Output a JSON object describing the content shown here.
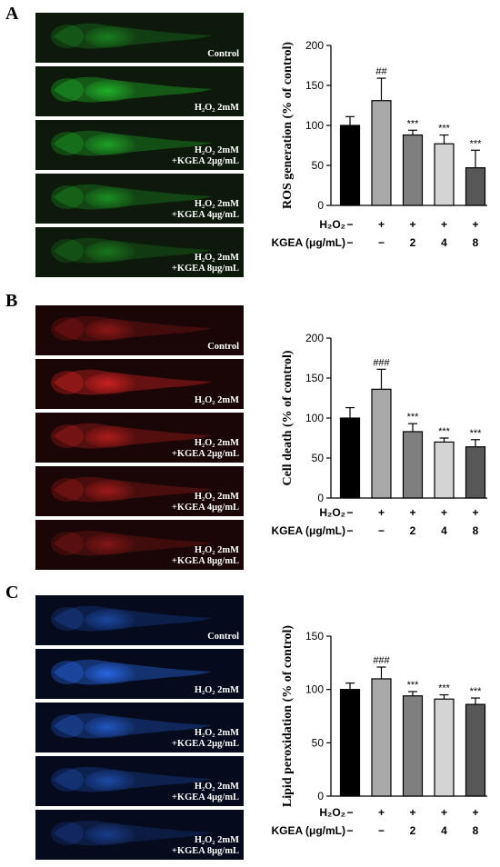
{
  "panels": [
    {
      "letter": "A",
      "color": "#22c02c",
      "bg": "#0d1a0b",
      "images": [
        {
          "caption1": "Control",
          "caption2": "",
          "intensity": 0.55
        },
        {
          "caption1": "H₂O₂ 2mM",
          "caption2": "",
          "intensity": 0.95
        },
        {
          "caption1": "H₂O₂ 2mM",
          "caption2": "+KGEA 2μg/mL",
          "intensity": 0.8
        },
        {
          "caption1": "H₂O₂ 2mM",
          "caption2": "+KGEA 4μg/mL",
          "intensity": 0.65
        },
        {
          "caption1": "H₂O₂ 2mM",
          "caption2": "+KGEA 8μg/mL",
          "intensity": 0.5
        }
      ]
    },
    {
      "letter": "B",
      "color": "#d62222",
      "bg": "#1a0606",
      "images": [
        {
          "caption1": "Control",
          "caption2": "",
          "intensity": 0.55
        },
        {
          "caption1": "H₂O₂ 2mM",
          "caption2": "",
          "intensity": 1.0
        },
        {
          "caption1": "H₂O₂ 2mM",
          "caption2": "+KGEA 2μg/mL",
          "intensity": 0.75
        },
        {
          "caption1": "H₂O₂ 2mM",
          "caption2": "+KGEA 4μg/mL",
          "intensity": 0.65
        },
        {
          "caption1": "H₂O₂ 2mM",
          "caption2": "+KGEA 8μg/mL",
          "intensity": 0.5
        }
      ]
    },
    {
      "letter": "C",
      "color": "#2a6cf0",
      "bg": "#050a1c",
      "images": [
        {
          "caption1": "Control",
          "caption2": "",
          "intensity": 0.55
        },
        {
          "caption1": "H₂O₂ 2mM",
          "caption2": "",
          "intensity": 1.0
        },
        {
          "caption1": "H₂O₂ 2mM",
          "caption2": "+KGEA 2μg/mL",
          "intensity": 0.75
        },
        {
          "caption1": "H₂O₂ 2mM",
          "caption2": "+KGEA 4μg/mL",
          "intensity": 0.6
        },
        {
          "caption1": "H₂O₂ 2mM",
          "caption2": "+KGEA 8μg/mL",
          "intensity": 0.45
        }
      ]
    }
  ],
  "treatments": {
    "h2o2_label": "H₂O₂",
    "kgea_label": "KGEA (μg/mL)",
    "h2o2": [
      "−",
      "+",
      "+",
      "+",
      "+"
    ],
    "kgea": [
      "−",
      "−",
      "2",
      "4",
      "8"
    ]
  },
  "bar_colors": [
    "#000000",
    "#a8a8a8",
    "#7f7f7f",
    "#d4d4d4",
    "#575757"
  ],
  "chart_data": [
    {
      "type": "bar",
      "panel": "A",
      "ylabel": "ROS generation (% of control)",
      "ylim": [
        0,
        200
      ],
      "yticks": [
        0,
        50,
        100,
        150,
        200
      ],
      "categories": [
        "Control",
        "H₂O₂",
        "H₂O₂+KGEA 2",
        "H₂O₂+KGEA 4",
        "H₂O₂+KGEA 8"
      ],
      "values": [
        100,
        131,
        88,
        77,
        47
      ],
      "errors": [
        11,
        28,
        6,
        11,
        22
      ],
      "annotations": [
        "",
        "##",
        "***",
        "***",
        "***"
      ]
    },
    {
      "type": "bar",
      "panel": "B",
      "ylabel": "Cell death (% of control)",
      "ylim": [
        0,
        200
      ],
      "yticks": [
        0,
        50,
        100,
        150,
        200
      ],
      "categories": [
        "Control",
        "H₂O₂",
        "H₂O₂+KGEA 2",
        "H₂O₂+KGEA 4",
        "H₂O₂+KGEA 8"
      ],
      "values": [
        100,
        136,
        83,
        70,
        64
      ],
      "errors": [
        13,
        25,
        10,
        5,
        9
      ],
      "annotations": [
        "",
        "###",
        "***",
        "***",
        "***"
      ]
    },
    {
      "type": "bar",
      "panel": "C",
      "ylabel": "Lipid peroxidation (% of control)",
      "ylim": [
        0,
        150
      ],
      "yticks": [
        0,
        50,
        100,
        150
      ],
      "categories": [
        "Control",
        "H₂O₂",
        "H₂O₂+KGEA 2",
        "H₂O₂+KGEA 4",
        "H₂O₂+KGEA 8"
      ],
      "values": [
        100,
        110,
        94,
        91,
        86
      ],
      "errors": [
        6,
        11,
        4,
        4,
        6
      ],
      "annotations": [
        "",
        "###",
        "***",
        "***",
        "***"
      ]
    }
  ]
}
